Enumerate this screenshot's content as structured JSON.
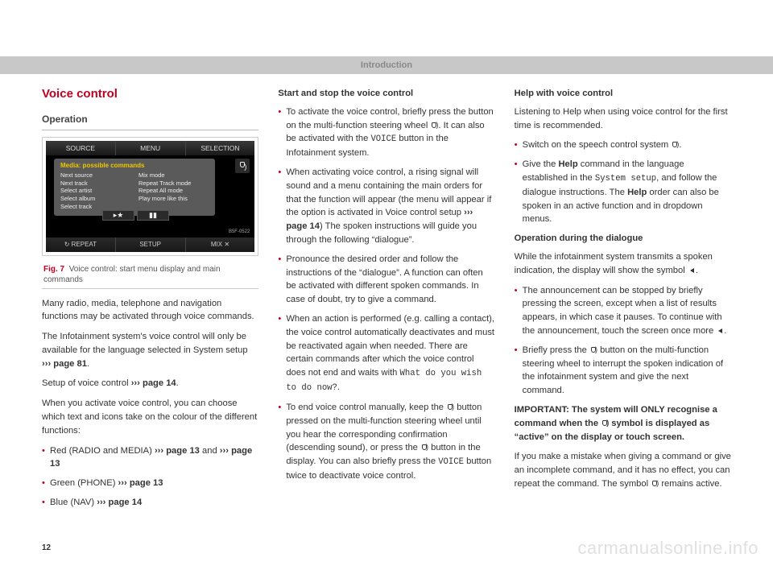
{
  "header": "Introduction",
  "page_number": "12",
  "watermark": "carmanualsonline.info",
  "col1": {
    "title": "Voice control",
    "subtitle": "Operation",
    "screen": {
      "top": [
        "SOURCE",
        "MENU",
        "SELECTION"
      ],
      "popup_title": "Media: possible commands",
      "popup_left": [
        "Next source",
        "Next track",
        "Select artist",
        "Select album",
        "Select track"
      ],
      "popup_right": [
        "Mix mode",
        "Repeat Track mode",
        "Repeat All mode",
        "Play more like this"
      ],
      "btn1": "▸★",
      "btn2": "▮▮",
      "bottom": [
        "↻ REPEAT",
        "SETUP",
        "MIX ✕"
      ],
      "ref": "B5F-0522"
    },
    "fig_num": "Fig. 7",
    "fig_caption": "Voice control: start menu display and main commands",
    "p1": "Many radio, media, telephone and navigation functions may be activated through voice commands.",
    "p2_a": "The Infotainment system's voice control will only be available for the language selected in System setup ",
    "p2_ref": "››› page 81",
    "p2_b": ".",
    "p3_a": "Setup of voice control ",
    "p3_ref": "››› page 14",
    "p3_b": ".",
    "p4": "When you activate voice control, you can choose which text and icons take on the colour of the different functions:",
    "li1_a": "Red (RADIO and MEDIA) ",
    "li1_ref1": "››› page 13",
    "li1_mid": " and ",
    "li1_ref2": "››› page 13",
    "li2_a": "Green (PHONE) ",
    "li2_ref": "››› page 13",
    "li3_a": "Blue (NAV) ",
    "li3_ref": "››› page 14"
  },
  "col2": {
    "h1": "Start and stop the voice control",
    "li1_a": "To activate the voice control, briefly press the button on the multi-function steering wheel ",
    "li1_b": ". It can also be activated with the ",
    "li1_voice": "VOICE",
    "li1_c": " button in the Infotainment system.",
    "li2_a": "When activating voice control, a rising signal will sound and a menu containing the main orders for that the function will appear (the menu will appear if the option is activated in Voice control setup ",
    "li2_ref": "››› page 14",
    "li2_b": ") The spoken instructions will guide you through the following “dialogue”.",
    "li3": "Pronounce the desired order and follow the instructions of the “dialogue”. A function can often be activated with different spoken commands. In case of doubt, try to give a command.",
    "li4": "When an action is performed (e.g. calling a contact), the voice control automatically deactivates and must be reactivated again when needed. There are certain commands after which the voice control does not end and waits with ",
    "li4_mono": "What do you wish to do now?",
    "li4_b": ".",
    "li5_a": "To end voice control manually, keep the ",
    "li5_b": " button pressed on the multi-function steering wheel until you hear the corresponding confirmation (descending sound), or press the ",
    "li5_c": " button in the display. You can also briefly press the ",
    "li5_voice": "VOICE",
    "li5_d": " button twice to deactivate voice control."
  },
  "col3": {
    "h1": "Help with voice control",
    "p1": "Listening to Help when using voice control for the first time is recommended.",
    "li1_a": "Switch on the speech control system ",
    "li1_b": ".",
    "li2_a": "Give the ",
    "li2_help": "Help",
    "li2_b": " command in the language established in the ",
    "li2_mono": "System setup",
    "li2_c": ", and follow the dialogue instructions. The ",
    "li2_help2": "Help",
    "li2_d": " order can also be spoken in an active function and in dropdown menus.",
    "h2": "Operation during the dialogue",
    "p2_a": "While the infotainment system transmits a spoken indication, the display will show the symbol ",
    "p2_b": ".",
    "li3_a": "The announcement can be stopped by briefly pressing the screen, except when a list of results appears, in which case it pauses. To continue with the announcement, touch the screen once more ",
    "li3_b": ".",
    "li4_a": "Briefly press the ",
    "li4_b": " button on the multi-function steering wheel to interrupt the spoken indication of the infotainment system and give the next command.",
    "imp_a": "IMPORTANT: The system will ONLY recognise a command when the ",
    "imp_b": " symbol is displayed as “active” on the display or touch screen.",
    "p3_a": "If you make a mistake when giving a command or give an incomplete command, and it has no effect, you can repeat the command. The symbol ",
    "p3_b": " remains active."
  }
}
